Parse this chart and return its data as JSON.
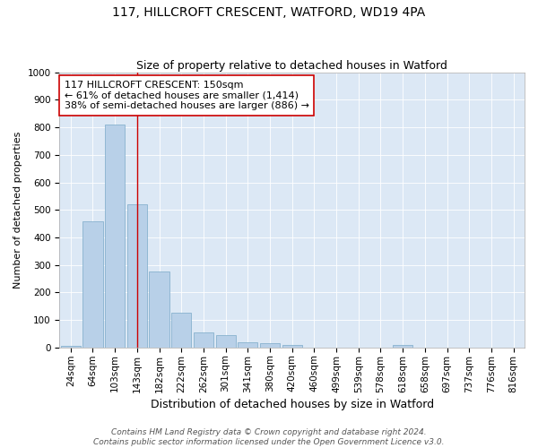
{
  "title": "117, HILLCROFT CRESCENT, WATFORD, WD19 4PA",
  "subtitle": "Size of property relative to detached houses in Watford",
  "xlabel": "Distribution of detached houses by size in Watford",
  "ylabel": "Number of detached properties",
  "categories": [
    "24sqm",
    "64sqm",
    "103sqm",
    "143sqm",
    "182sqm",
    "222sqm",
    "262sqm",
    "301sqm",
    "341sqm",
    "380sqm",
    "420sqm",
    "460sqm",
    "499sqm",
    "539sqm",
    "578sqm",
    "618sqm",
    "658sqm",
    "697sqm",
    "737sqm",
    "776sqm",
    "816sqm"
  ],
  "values": [
    5,
    460,
    810,
    520,
    275,
    125,
    55,
    45,
    20,
    15,
    8,
    0,
    0,
    0,
    0,
    8,
    0,
    0,
    0,
    0,
    0
  ],
  "bar_color": "#b8d0e8",
  "bar_edge_color": "#7aaac8",
  "vline_x_index": 3,
  "vline_color": "#cc0000",
  "annotation_text": "117 HILLCROFT CRESCENT: 150sqm\n← 61% of detached houses are smaller (1,414)\n38% of semi-detached houses are larger (886) →",
  "annotation_box_color": "#ffffff",
  "annotation_box_edge_color": "#cc0000",
  "ylim": [
    0,
    1000
  ],
  "yticks": [
    0,
    100,
    200,
    300,
    400,
    500,
    600,
    700,
    800,
    900,
    1000
  ],
  "background_color": "#dce8f5",
  "footer_text": "Contains HM Land Registry data © Crown copyright and database right 2024.\nContains public sector information licensed under the Open Government Licence v3.0.",
  "title_fontsize": 10,
  "subtitle_fontsize": 9,
  "xlabel_fontsize": 9,
  "ylabel_fontsize": 8,
  "tick_fontsize": 7.5,
  "annotation_fontsize": 8,
  "footer_fontsize": 6.5
}
